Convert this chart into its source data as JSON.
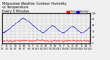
{
  "title": "Milwaukee Weather Outdoor Humidity",
  "subtitle1": "vs Temperature",
  "subtitle2": "Every 5 Minutes",
  "background_color": "#f0f0f0",
  "plot_bg_color": "#f0f0f0",
  "grid_color": "#aaaaaa",
  "blue_color": "#0000ff",
  "red_color": "#ff0000",
  "blue_label": "Humidity",
  "red_label": "Temp",
  "title_fontsize": 3.5,
  "tick_fontsize": 2.2,
  "marker_size": 0.5,
  "blue_x": [
    0,
    2,
    4,
    5,
    6,
    7,
    8,
    9,
    10,
    12,
    14,
    16,
    18,
    20,
    22,
    24,
    26,
    28,
    30,
    32,
    34,
    36,
    38,
    40,
    42,
    44,
    46,
    48,
    50,
    52,
    54,
    56,
    58,
    60,
    62,
    64,
    66,
    68,
    70,
    72,
    74,
    76,
    78,
    80,
    82,
    84,
    86,
    88,
    90,
    92,
    94,
    96,
    98,
    100,
    102,
    104,
    106,
    108,
    110,
    112,
    114,
    116,
    118,
    120,
    122,
    124,
    126,
    128,
    130,
    132,
    134,
    136,
    138,
    140,
    142,
    144,
    146,
    148,
    150,
    152,
    154,
    156,
    158,
    160,
    162,
    164,
    166,
    168,
    170,
    172,
    174,
    176,
    178,
    180,
    182,
    184,
    186,
    188,
    190,
    192,
    194,
    196,
    198,
    200,
    202,
    204,
    206,
    208,
    210,
    212,
    214,
    216,
    218,
    220,
    222,
    224,
    226,
    228,
    230,
    232,
    234,
    236,
    238,
    240
  ],
  "blue_y": [
    38,
    37,
    36,
    37,
    38,
    39,
    40,
    41,
    42,
    44,
    45,
    47,
    48,
    50,
    52,
    54,
    56,
    58,
    60,
    62,
    64,
    66,
    68,
    70,
    72,
    74,
    76,
    78,
    80,
    82,
    84,
    85,
    84,
    83,
    82,
    80,
    78,
    76,
    74,
    72,
    70,
    68,
    66,
    64,
    62,
    60,
    58,
    56,
    54,
    52,
    50,
    48,
    46,
    44,
    42,
    40,
    38,
    36,
    35,
    36,
    38,
    40,
    42,
    44,
    46,
    48,
    50,
    52,
    54,
    56,
    58,
    59,
    58,
    57,
    56,
    54,
    52,
    50,
    48,
    46,
    44,
    42,
    40,
    38,
    36,
    35,
    36,
    37,
    38,
    40,
    42,
    44,
    46,
    48,
    50,
    52,
    54,
    56,
    57,
    56,
    55,
    54,
    52,
    50,
    48,
    46,
    44,
    42,
    40,
    38,
    36,
    35,
    36,
    37,
    38,
    40,
    42,
    44,
    46,
    48,
    50,
    52,
    54,
    55
  ],
  "red_x": [
    0,
    2,
    4,
    6,
    8,
    10,
    12,
    14,
    16,
    18,
    20,
    22,
    24,
    26,
    28,
    30,
    32,
    34,
    36,
    38,
    40,
    42,
    44,
    46,
    48,
    50,
    52,
    54,
    56,
    58,
    60,
    62,
    64,
    66,
    68,
    70,
    72,
    74,
    76,
    78,
    80,
    82,
    84,
    86,
    88,
    90,
    92,
    94,
    96,
    98,
    100,
    102,
    104,
    106,
    108,
    110,
    112,
    114,
    116,
    118,
    120,
    122,
    124,
    126,
    128,
    130,
    132,
    134,
    136,
    138,
    140,
    142,
    144,
    146,
    148,
    150,
    152,
    154,
    156,
    158,
    160,
    162,
    164,
    166,
    168,
    170,
    172,
    174,
    176,
    178,
    180,
    182,
    184,
    186,
    188,
    190,
    192,
    194,
    196,
    198,
    200,
    202,
    204,
    206,
    208,
    210,
    212,
    214,
    216,
    218,
    220,
    222,
    224,
    226,
    228,
    230,
    232,
    234,
    236,
    238,
    240
  ],
  "red_y": [
    10,
    9,
    8,
    9,
    8,
    9,
    10,
    8,
    7,
    8,
    9,
    10,
    8,
    7,
    6,
    8,
    9,
    8,
    9,
    10,
    11,
    10,
    9,
    8,
    9,
    10,
    8,
    9,
    10,
    11,
    10,
    9,
    10,
    11,
    10,
    9,
    8,
    9,
    10,
    9,
    8,
    9,
    10,
    9,
    8,
    9,
    10,
    11,
    12,
    11,
    10,
    9,
    10,
    11,
    12,
    11,
    10,
    9,
    8,
    9,
    10,
    9,
    8,
    7,
    8,
    9,
    8,
    7,
    8,
    9,
    10,
    11,
    10,
    9,
    8,
    9,
    10,
    9,
    8,
    9,
    10,
    9,
    8,
    7,
    8,
    9,
    10,
    9,
    8,
    9,
    10,
    11,
    10,
    9,
    8,
    9,
    10,
    11,
    10,
    9,
    8,
    9,
    10,
    9,
    8,
    9,
    10,
    9,
    8,
    9,
    10,
    11,
    10,
    9,
    8,
    9,
    10,
    9,
    8,
    9,
    10
  ],
  "xlim": [
    0,
    240
  ],
  "ylim": [
    0,
    100
  ],
  "ytick_positions": [
    0,
    10,
    20,
    30,
    40,
    50,
    60,
    70,
    80,
    90,
    100
  ],
  "ytick_labels": [
    "0",
    "",
    "20",
    "",
    "40",
    "",
    "60",
    "",
    "80",
    "",
    "100"
  ],
  "xtick_positions": [
    0,
    12,
    24,
    36,
    48,
    60,
    72,
    84,
    96,
    108,
    120,
    132,
    144,
    156,
    168,
    180,
    192,
    204,
    216,
    228,
    240
  ],
  "xtick_labels": [
    "Fr\n1/2",
    "Sa\n1/3",
    "Su\n1/4",
    "Mo\n1/5",
    "Tu\n1/6",
    "We\n1/7",
    "Th\n1/8",
    "Fr\n1/9",
    "Sa\n1/10",
    "Su\n1/11",
    "Mo\n1/12",
    "Tu\n1/13",
    "We\n1/14",
    "Th\n1/15",
    "Fr\n1/16",
    "Sa\n1/17",
    "Su\n1/18",
    "Mo\n1/19",
    "Tu\n1/20",
    "We\n1/21",
    "Th\n1/22"
  ]
}
